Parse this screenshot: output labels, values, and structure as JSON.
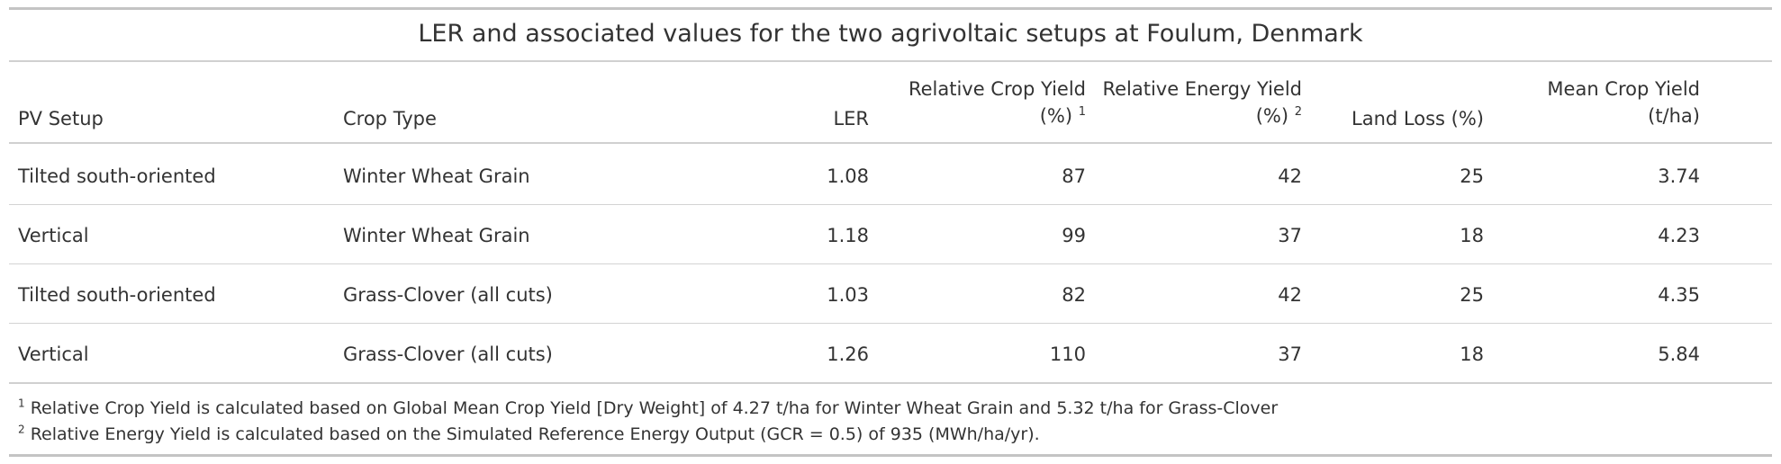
{
  "table": {
    "title": "LER and associated values for the two agrivoltaic setups at Foulum, Denmark",
    "headers": {
      "pv_setup": "PV Setup",
      "crop_type": "Crop Type",
      "ler": "LER",
      "rel_crop_line1": "Relative Crop Yield",
      "rel_crop_line2": "(%)",
      "rel_crop_mark": "1",
      "rel_energy_line1": "Relative Energy Yield",
      "rel_energy_line2": "(%)",
      "rel_energy_mark": "2",
      "land_loss": "Land Loss (%)",
      "mean_crop_line1": "Mean Crop Yield",
      "mean_crop_line2": "(t/ha)"
    },
    "rows": [
      {
        "pv_setup": "Tilted south-oriented",
        "crop_type": "Winter Wheat Grain",
        "ler": "1.08",
        "rel_crop": "87",
        "rel_energy": "42",
        "land_loss": "25",
        "mean_crop": "3.74"
      },
      {
        "pv_setup": "Vertical",
        "crop_type": "Winter Wheat Grain",
        "ler": "1.18",
        "rel_crop": "99",
        "rel_energy": "37",
        "land_loss": "18",
        "mean_crop": "4.23"
      },
      {
        "pv_setup": "Tilted south-oriented",
        "crop_type": "Grass-Clover (all cuts)",
        "ler": "1.03",
        "rel_crop": "82",
        "rel_energy": "42",
        "land_loss": "25",
        "mean_crop": "4.35"
      },
      {
        "pv_setup": "Vertical",
        "crop_type": "Grass-Clover (all cuts)",
        "ler": "1.26",
        "rel_crop": "110",
        "rel_energy": "37",
        "land_loss": "18",
        "mean_crop": "5.84"
      }
    ],
    "footnotes": [
      {
        "mark": "1",
        "text": "Relative Crop Yield is calculated based on Global Mean Crop Yield [Dry Weight] of 4.27 t/ha for Winter Wheat Grain and 5.32 t/ha for Grass-Clover"
      },
      {
        "mark": "2",
        "text": "Relative Energy Yield is calculated based on the Simulated Reference Energy Output (GCR = 0.5) of 935 (MWh/ha/yr)."
      }
    ]
  }
}
